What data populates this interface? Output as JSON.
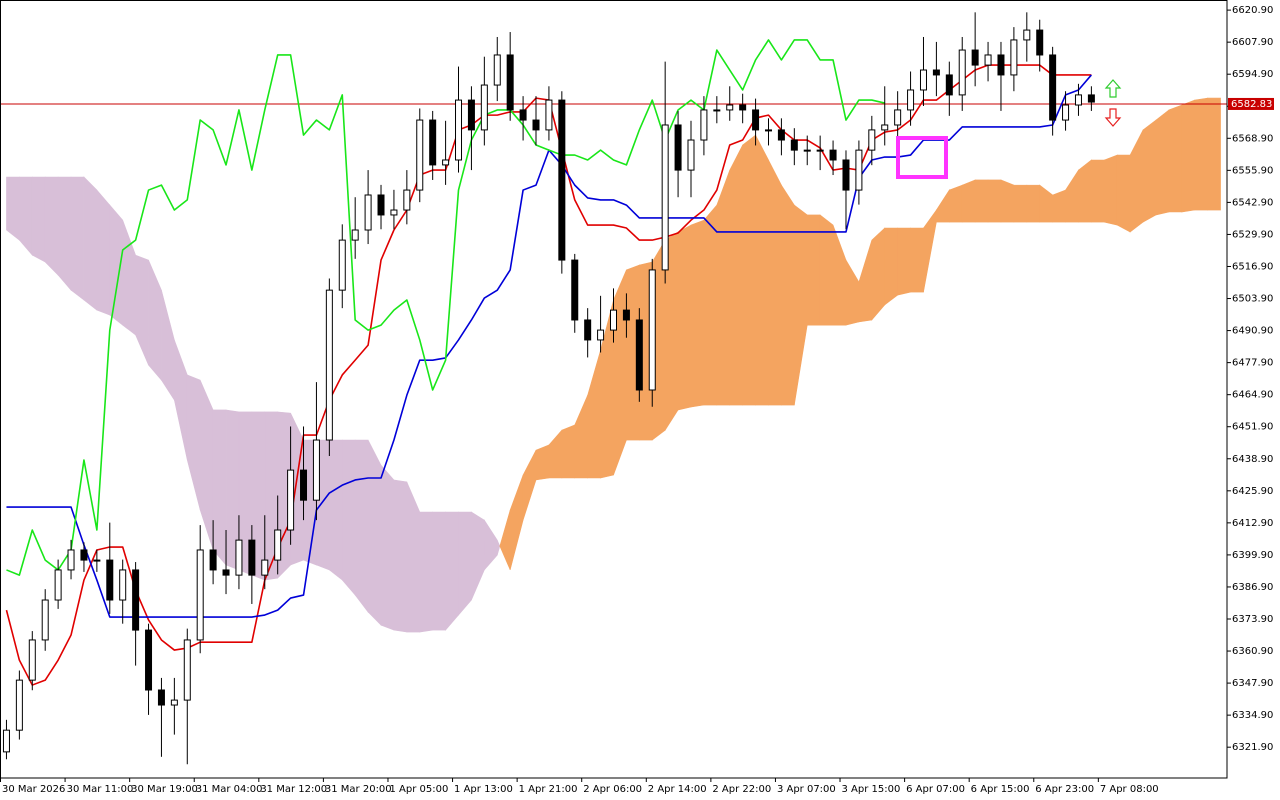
{
  "chart_data": {
    "type": "candlestick",
    "categories": [
      "30 Mar 2026",
      null,
      null,
      null,
      null,
      "30 Mar 11:00",
      null,
      null,
      null,
      null,
      "30 Mar 19:00",
      null,
      null,
      null,
      null,
      "31 Mar 04:00",
      null,
      null,
      null,
      null,
      "31 Mar 12:00",
      null,
      null,
      null,
      null,
      "31 Mar 20:00",
      null,
      null,
      null,
      null,
      "1 Apr 05:00",
      null,
      null,
      null,
      null,
      "1 Apr 13:00",
      null,
      null,
      null,
      null,
      "1 Apr 21:00",
      null,
      null,
      null,
      null,
      "2 Apr 06:00",
      null,
      null,
      null,
      null,
      "2 Apr 14:00",
      null,
      null,
      null,
      null,
      "2 Apr 22:00",
      null,
      null,
      null,
      null,
      "3 Apr 07:00",
      null,
      null,
      null,
      null,
      "3 Apr 15:00",
      null,
      null,
      null,
      null,
      "6 Apr 07:00",
      null,
      null,
      null,
      null,
      "6 Apr 15:00",
      null,
      null,
      null,
      null,
      "6 Apr 23:00",
      null,
      null,
      null,
      null,
      "7 Apr 08:00",
      null,
      null,
      null,
      null,
      null,
      null,
      null,
      null,
      null
    ],
    "open": [
      6320.0,
      6328.8,
      6349.1,
      6365.4,
      6381.6,
      6393.8,
      6401.9,
      6397.8,
      6397.8,
      6381.6,
      6393.8,
      6369.4,
      6345.1,
      6339.0,
      6341.0,
      6365.4,
      6401.9,
      6393.8,
      6391.7,
      6405.9,
      6391.7,
      6397.8,
      6410.0,
      6434.3,
      6422.1,
      6446.5,
      6507.3,
      6527.6,
      6531.7,
      6545.9,
      6537.8,
      6539.8,
      6547.9,
      6576.3,
      6558.1,
      6560.1,
      6584.4,
      6572.3,
      6590.5,
      6602.7,
      6580.4,
      6576.3,
      6572.3,
      6584.4,
      6519.5,
      6495.2,
      6487.1,
      6491.1,
      6499.2,
      6495.2,
      6466.8,
      6515.5,
      6574.3,
      6556.0,
      6568.2,
      6580.4,
      6580.4,
      6582.4,
      6580.4,
      6572.3,
      6572.3,
      6568.2,
      6564.1,
      6564.1,
      6564.1,
      6560.1,
      6547.9,
      6564.1,
      6572.3,
      6574.3,
      6580.4,
      6588.5,
      6596.6,
      6594.6,
      6586.5,
      6604.7,
      6598.6,
      6602.7,
      6594.6,
      6608.8,
      6612.8,
      6602.7,
      6576.3,
      6582.4,
      6586.5,
      null,
      null,
      null,
      null,
      null,
      null,
      null,
      null,
      null,
      null
    ],
    "high": [
      6333.0,
      6353.0,
      6369.0,
      6386.0,
      6398.0,
      6406.0,
      6405.0,
      6402.0,
      6413.0,
      6398.0,
      6397.0,
      6372.0,
      6350.0,
      6350.0,
      6370.0,
      6412.0,
      6414.0,
      6410.0,
      6416.0,
      6412.0,
      6416.0,
      6424.0,
      6452.0,
      6452.0,
      6470.0,
      6512.0,
      6534.0,
      6545.0,
      6556.0,
      6550.0,
      6548.0,
      6556.0,
      6581.0,
      6580.0,
      6576.0,
      6598.0,
      6590.0,
      6602.0,
      6610.0,
      6612.0,
      6586.0,
      6586.0,
      6590.0,
      6588.0,
      6522.0,
      6500.0,
      6505.0,
      6508.0,
      6506.0,
      6500.0,
      6520.0,
      6600.0,
      6580.0,
      6576.0,
      6586.0,
      6586.0,
      6590.0,
      6587.0,
      6585.0,
      6577.0,
      6577.0,
      6573.0,
      6570.0,
      6570.0,
      6568.0,
      6564.0,
      6568.0,
      6578.0,
      6590.0,
      6588.0,
      6596.0,
      6610.0,
      6608.0,
      6600.0,
      6610.0,
      6620.0,
      6608.0,
      6608.0,
      6614.0,
      6620.0,
      6617.0,
      6606.0,
      6588.0,
      6591.0,
      6590.0,
      null,
      null,
      null,
      null,
      null,
      null,
      null,
      null,
      null,
      null
    ],
    "low": [
      6317.0,
      6325.0,
      6345.0,
      6361.0,
      6378.0,
      6390.0,
      6393.0,
      6393.0,
      6376.0,
      6372.0,
      6355.0,
      6335.0,
      6318.0,
      6327.0,
      6315.0,
      6360.0,
      6388.0,
      6384.0,
      6386.0,
      6380.0,
      6386.0,
      6392.0,
      6404.0,
      6414.0,
      6414.0,
      6440.0,
      6500.0,
      6520.0,
      6526.0,
      6532.0,
      6532.0,
      6534.0,
      6543.0,
      6552.0,
      6550.0,
      6555.0,
      6556.0,
      6566.0,
      6584.0,
      6576.0,
      6568.0,
      6566.0,
      6568.0,
      6514.0,
      6490.0,
      6480.0,
      6482.0,
      6486.0,
      6488.0,
      6462.0,
      6460.0,
      6510.0,
      6545.0,
      6545.0,
      6562.0,
      6575.0,
      6576.0,
      6575.0,
      6566.0,
      6566.0,
      6562.0,
      6558.0,
      6558.0,
      6556.0,
      6554.0,
      6532.0,
      6542.0,
      6558.0,
      6566.0,
      6568.0,
      6574.0,
      6582.0,
      6586.0,
      6578.0,
      6580.0,
      6590.0,
      6592.0,
      6580.0,
      6588.0,
      6600.0,
      6596.0,
      6570.0,
      6572.0,
      6578.0,
      6580.0,
      null,
      null,
      null,
      null,
      null,
      null,
      null,
      null,
      null,
      null
    ],
    "close": [
      6328.8,
      6349.1,
      6365.4,
      6381.6,
      6393.8,
      6401.9,
      6397.8,
      6397.8,
      6381.6,
      6393.8,
      6369.4,
      6345.1,
      6339.0,
      6341.0,
      6365.4,
      6401.9,
      6393.8,
      6391.7,
      6405.9,
      6391.7,
      6397.8,
      6410.0,
      6434.3,
      6422.1,
      6446.5,
      6507.3,
      6527.6,
      6531.7,
      6545.9,
      6537.8,
      6539.8,
      6547.9,
      6576.3,
      6558.1,
      6560.1,
      6584.4,
      6572.3,
      6590.5,
      6602.7,
      6580.4,
      6576.3,
      6572.3,
      6584.4,
      6519.5,
      6495.2,
      6487.1,
      6491.1,
      6499.2,
      6495.2,
      6466.8,
      6515.5,
      6574.3,
      6556.0,
      6568.2,
      6580.4,
      6580.4,
      6582.4,
      6580.4,
      6572.3,
      6572.3,
      6568.2,
      6564.1,
      6564.1,
      6564.1,
      6560.1,
      6547.9,
      6564.1,
      6572.3,
      6574.3,
      6580.4,
      6588.5,
      6596.6,
      6594.6,
      6586.5,
      6604.7,
      6598.6,
      6602.7,
      6594.6,
      6608.8,
      6612.8,
      6602.7,
      6576.3,
      6582.4,
      6586.5,
      6583.6,
      null,
      null,
      null,
      null,
      null,
      null,
      null,
      null,
      null,
      null
    ],
    "bull_color": "#ffffff",
    "bear_color": "#000000",
    "lines": [
      {
        "color": "#e00000",
        "values": [
          6377.5,
          6357.2,
          6347.1,
          6349.1,
          6357.2,
          6367.4,
          6389.7,
          6401.9,
          6403.1,
          6403.1,
          6385.6,
          6373.5,
          6365.4,
          6361.3,
          6362.1,
          6364.5,
          6364.5,
          6364.5,
          6364.5,
          6364.5,
          6389.7,
          6402.7,
          6414.0,
          6448.5,
          6448.5,
          6462.7,
          6472.9,
          6478.9,
          6485.0,
          6519.5,
          6531.7,
          6539.8,
          6554.0,
          6556.0,
          6556.0,
          6572.3,
          6574.3,
          6578.3,
          6578.3,
          6579.6,
          6579.6,
          6585.2,
          6584.4,
          6564.1,
          6543.9,
          6533.7,
          6533.7,
          6533.7,
          6532.5,
          6527.6,
          6527.6,
          6528.8,
          6530.5,
          6535.7,
          6539.8,
          6547.9,
          6566.2,
          6568.2,
          6577.1,
          6578.3,
          6572.3,
          6568.2,
          6568.2,
          6565.0,
          6556.0,
          6556.8,
          6556.0,
          6568.2,
          6571.4,
          6572.3,
          6576.3,
          6584.4,
          6584.4,
          6588.5,
          6592.5,
          6596.6,
          6598.6,
          6598.6,
          6598.6,
          6598.6,
          6598.6,
          6594.6,
          6594.6,
          6594.6,
          6594.6,
          null,
          null,
          null,
          null,
          null,
          null,
          null,
          null,
          null,
          null
        ]
      },
      {
        "color": "#0000d8",
        "values": [
          6419.3,
          6419.3,
          6419.3,
          6419.3,
          6419.3,
          6419.3,
          6403.9,
          6389.7,
          6374.7,
          6374.7,
          6374.7,
          6374.7,
          6374.7,
          6374.7,
          6374.7,
          6374.7,
          6374.7,
          6374.7,
          6374.7,
          6374.7,
          6375.5,
          6377.5,
          6382.4,
          6383.6,
          6418.1,
          6425.0,
          6428.2,
          6430.3,
          6431.1,
          6431.1,
          6446.5,
          6464.7,
          6478.9,
          6478.9,
          6479.8,
          6487.1,
          6495.2,
          6504.1,
          6507.3,
          6515.5,
          6547.9,
          6549.9,
          6564.1,
          6558.1,
          6549.9,
          6544.7,
          6543.9,
          6543.9,
          6541.8,
          6536.6,
          6536.6,
          6536.6,
          6536.6,
          6536.6,
          6536.6,
          6530.9,
          6530.9,
          6530.9,
          6530.9,
          6530.9,
          6530.9,
          6530.9,
          6530.9,
          6530.9,
          6530.9,
          6530.9,
          6552.8,
          6560.1,
          6561.3,
          6561.3,
          6562.1,
          6568.2,
          6568.2,
          6568.2,
          6573.5,
          6573.5,
          6573.5,
          6573.5,
          6573.5,
          6573.5,
          6573.5,
          6574.3,
          6586.5,
          6588.5,
          6594.6,
          null,
          null,
          null,
          null,
          null,
          null,
          null,
          null,
          null,
          null
        ]
      },
      {
        "color": "#19e619",
        "values": [
          6393.8,
          6391.7,
          6410.0,
          6397.8,
          6393.8,
          6401.9,
          6438.4,
          6410.0,
          6491.1,
          6523.6,
          6527.6,
          6547.9,
          6549.9,
          6539.8,
          6543.9,
          6576.3,
          6572.3,
          6558.1,
          6580.4,
          6556.0,
          6580.4,
          6602.7,
          6602.7,
          6570.2,
          6576.3,
          6572.3,
          6586.5,
          6495.2,
          6491.1,
          6493.1,
          6499.2,
          6503.3,
          6487.1,
          6466.8,
          6478.9,
          6547.9,
          6568.2,
          6578.3,
          6580.4,
          6580.4,
          6574.3,
          6566.2,
          6564.1,
          6562.1,
          6562.1,
          6560.1,
          6564.1,
          6560.1,
          6558.1,
          6572.3,
          6584.4,
          6568.2,
          6580.4,
          6584.4,
          6580.4,
          6604.7,
          6596.6,
          6588.5,
          6600.7,
          6608.8,
          6600.7,
          6608.8,
          6608.8,
          6600.7,
          6600.7,
          6576.3,
          6584.4,
          6584.4,
          6583.2,
          null,
          null,
          null,
          null,
          null,
          null,
          null,
          null,
          null,
          null,
          null,
          null,
          null,
          null,
          null,
          null,
          null,
          null,
          null,
          null,
          null,
          null,
          null,
          null,
          null,
          null
        ]
      }
    ],
    "cloud": {
      "up_color": "#f4a460",
      "down_color": "#d8bfd8",
      "span_a": [
        6531.7,
        6527.6,
        6521.5,
        6518.7,
        6513.4,
        6507.3,
        6503.3,
        6499.2,
        6497.2,
        6493.1,
        6489.1,
        6476.9,
        6470.8,
        6462.7,
        6438.4,
        6418.1,
        6401.9,
        6395.8,
        6393.8,
        6391.7,
        6389.7,
        6390.5,
        6395.8,
        6397.8,
        6395.8,
        6393.8,
        6389.7,
        6383.6,
        6376.7,
        6371.4,
        6369.4,
        6368.6,
        6368.6,
        6369.4,
        6369.4,
        6375.5,
        6381.6,
        6393.8,
        6399.8,
        6418.1,
        6432.3,
        6442.4,
        6444.5,
        6450.5,
        6452.6,
        6464.7,
        6483.0,
        6503.3,
        6515.5,
        6517.5,
        6518.7,
        6527.6,
        6530.9,
        6533.7,
        6535.7,
        6541.8,
        6556.0,
        6566.2,
        6570.2,
        6560.1,
        6549.9,
        6541.8,
        6537.8,
        6537.8,
        6533.7,
        6519.5,
        6510.6,
        6527.6,
        6532.5,
        6532.5,
        6532.5,
        6532.5,
        6539.8,
        6547.9,
        6549.9,
        6552.0,
        6552.0,
        6552.0,
        6549.9,
        6549.9,
        6549.9,
        6545.9,
        6547.9,
        6556.0,
        6560.1,
        6560.1,
        6562.1,
        6562.1,
        6572.3,
        6576.3,
        6580.4,
        6582.4,
        6584.4,
        6585.2,
        6585.2
      ],
      "span_b": [
        6553.2,
        6553.2,
        6553.2,
        6553.2,
        6553.2,
        6553.2,
        6553.2,
        6547.9,
        6541.8,
        6535.7,
        6521.5,
        6519.5,
        6507.3,
        6487.1,
        6472.9,
        6470.8,
        6458.7,
        6458.7,
        6457.9,
        6457.9,
        6457.9,
        6457.9,
        6457.4,
        6446.5,
        6446.5,
        6446.5,
        6446.5,
        6446.5,
        6446.5,
        6436.3,
        6430.3,
        6429.5,
        6417.3,
        6417.3,
        6417.3,
        6417.3,
        6417.3,
        6414.0,
        6405.9,
        6393.8,
        6414.0,
        6430.3,
        6431.1,
        6431.1,
        6431.1,
        6431.1,
        6431.1,
        6432.3,
        6446.5,
        6446.5,
        6446.5,
        6450.5,
        6458.7,
        6459.9,
        6460.7,
        6460.7,
        6460.7,
        6460.7,
        6460.7,
        6460.7,
        6460.7,
        6460.7,
        6493.1,
        6493.1,
        6493.1,
        6493.1,
        6494.4,
        6495.2,
        6501.3,
        6505.3,
        6506.5,
        6506.5,
        6534.9,
        6534.9,
        6534.9,
        6534.9,
        6534.9,
        6534.9,
        6534.9,
        6534.9,
        6534.9,
        6534.9,
        6534.9,
        6534.9,
        6534.9,
        6534.9,
        6533.7,
        6530.9,
        6534.9,
        6537.8,
        6539.0,
        6539.0,
        6539.8,
        6539.8,
        6539.8
      ]
    },
    "last_price": 6582.83,
    "last_price_color": "#c80000",
    "ylim": [
      6309.4,
      6625.0
    ],
    "yticks": [
      {
        "value": 6321.9,
        "label": "6321.90"
      },
      {
        "value": 6334.9,
        "label": "6334.90"
      },
      {
        "value": 6347.9,
        "label": "6347.90"
      },
      {
        "value": 6360.9,
        "label": "6360.90"
      },
      {
        "value": 6373.9,
        "label": "6373.90"
      },
      {
        "value": 6386.9,
        "label": "6386.90"
      },
      {
        "value": 6399.9,
        "label": "6399.90"
      },
      {
        "value": 6412.9,
        "label": "6412.90"
      },
      {
        "value": 6425.9,
        "label": "6425.90"
      },
      {
        "value": 6438.9,
        "label": "6438.90"
      },
      {
        "value": 6451.9,
        "label": "6451.90"
      },
      {
        "value": 6464.9,
        "label": "6464.90"
      },
      {
        "value": 6477.9,
        "label": "6477.90"
      },
      {
        "value": 6490.9,
        "label": "6490.90"
      },
      {
        "value": 6503.9,
        "label": "6503.90"
      },
      {
        "value": 6516.9,
        "label": "6516.90"
      },
      {
        "value": 6529.9,
        "label": "6529.90"
      },
      {
        "value": 6542.9,
        "label": "6542.90"
      },
      {
        "value": 6555.9,
        "label": "6555.90"
      },
      {
        "value": 6568.9,
        "label": "6568.90"
      },
      {
        "value": 6581.9,
        "label": "6581.90"
      },
      {
        "value": 6594.9,
        "label": "6594.90"
      },
      {
        "value": 6607.9,
        "label": "6607.90"
      },
      {
        "value": 6620.9,
        "label": "6620.90"
      }
    ]
  }
}
